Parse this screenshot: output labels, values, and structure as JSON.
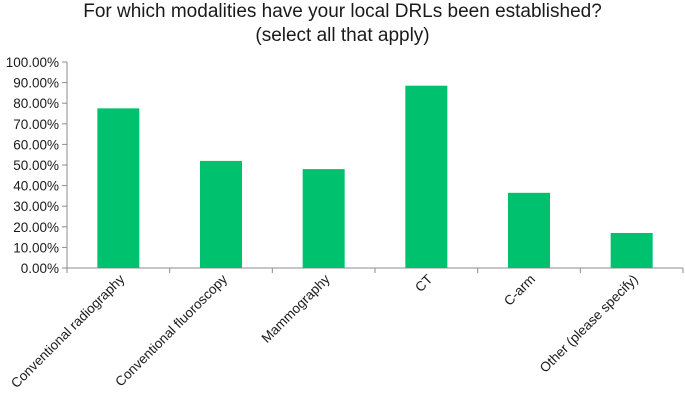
{
  "chart_data": {
    "type": "bar",
    "title": [
      "For which modalities have your local DRLs been established?",
      "(select all that apply)"
    ],
    "xlabel": "",
    "ylabel": "",
    "categories": [
      "Conventional radiography",
      "Conventional fluoroscopy",
      "Mammography",
      "CT",
      "C-arm",
      "Other (please specify)"
    ],
    "values": [
      77.5,
      52.0,
      48.0,
      88.5,
      36.5,
      17.0
    ],
    "ylim": [
      0,
      100
    ],
    "yticks": [
      0,
      10,
      20,
      30,
      40,
      50,
      60,
      70,
      80,
      90,
      100
    ],
    "ytick_labels": [
      "0.00%",
      "10.00%",
      "20.00%",
      "30.00%",
      "40.00%",
      "50.00%",
      "60.00%",
      "70.00%",
      "80.00%",
      "90.00%",
      "100.00%"
    ],
    "bar_color": "#00c26e",
    "grid": false,
    "legend": "none"
  }
}
